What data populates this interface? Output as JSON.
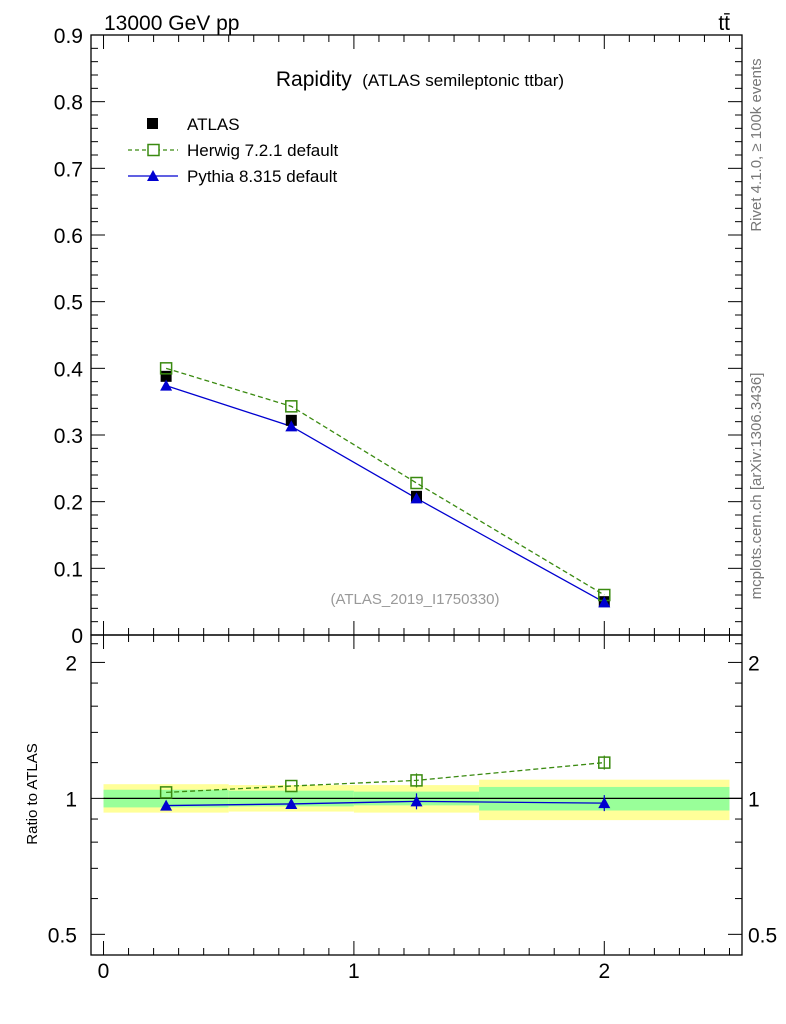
{
  "header": {
    "left": "13000 GeV pp",
    "right": "tt̄"
  },
  "side_labels": {
    "rivet": "Rivet 4.1.0, ≥ 100k events",
    "mcplots": "mcplots.cern.ch [arXiv:1306.3436]"
  },
  "colors": {
    "atlas": "#000000",
    "herwig": "#3a8a10",
    "pythia": "#0000d0",
    "band_yellow": "#ffff99",
    "band_green": "#99ff99",
    "watermark": "#999999"
  },
  "chart_data": [
    {
      "type": "line",
      "panel": "main",
      "title": "Rapidity",
      "subtitle": "(ATLAS semileptonic ttbar)",
      "watermark": "(ATLAS_2019_I1750330)",
      "xlim": [
        -0.05,
        2.55
      ],
      "ylim": [
        0,
        0.9
      ],
      "ytick_labels": [
        "0",
        "0.1",
        "0.2",
        "0.3",
        "0.4",
        "0.5",
        "0.6",
        "0.7",
        "0.8",
        "0.9"
      ],
      "x": [
        0.25,
        0.75,
        1.25,
        2.0
      ],
      "series": [
        {
          "name": "ATLAS",
          "marker": "filled-square",
          "values": [
            0.388,
            0.322,
            0.208,
            0.05
          ]
        },
        {
          "name": "Herwig 7.2.1 default",
          "marker": "open-square",
          "line": "dashed",
          "values": [
            0.4,
            0.343,
            0.228,
            0.06
          ]
        },
        {
          "name": "Pythia 8.315 default",
          "marker": "filled-triangle",
          "line": "solid",
          "values": [
            0.374,
            0.313,
            0.205,
            0.049
          ]
        }
      ],
      "legend_position": "top-left"
    },
    {
      "type": "line",
      "panel": "ratio",
      "ylabel": "Ratio to ATLAS",
      "ylog": true,
      "ylim": [
        0.45,
        2.3
      ],
      "xlim": [
        -0.05,
        2.55
      ],
      "ytick_labels": [
        "0.5",
        "1",
        "2"
      ],
      "xtick_labels": [
        "0",
        "1",
        "2"
      ],
      "bins": [
        [
          0,
          0.5
        ],
        [
          0.5,
          1.0
        ],
        [
          1.0,
          1.5
        ],
        [
          1.5,
          2.5
        ]
      ],
      "x": [
        0.25,
        0.75,
        1.25,
        2.0
      ],
      "band_inner": [
        [
          0.955,
          1.045
        ],
        [
          0.96,
          1.04
        ],
        [
          0.965,
          1.035
        ],
        [
          0.94,
          1.06
        ]
      ],
      "band_outer": [
        [
          0.93,
          1.075
        ],
        [
          0.935,
          1.07
        ],
        [
          0.93,
          1.07
        ],
        [
          0.895,
          1.1
        ]
      ],
      "series": [
        {
          "name": "Herwig 7.2.1 default",
          "values": [
            1.031,
            1.065,
            1.096,
            1.2
          ]
        },
        {
          "name": "Pythia 8.315 default",
          "values": [
            0.964,
            0.972,
            0.985,
            0.976
          ]
        }
      ]
    }
  ]
}
